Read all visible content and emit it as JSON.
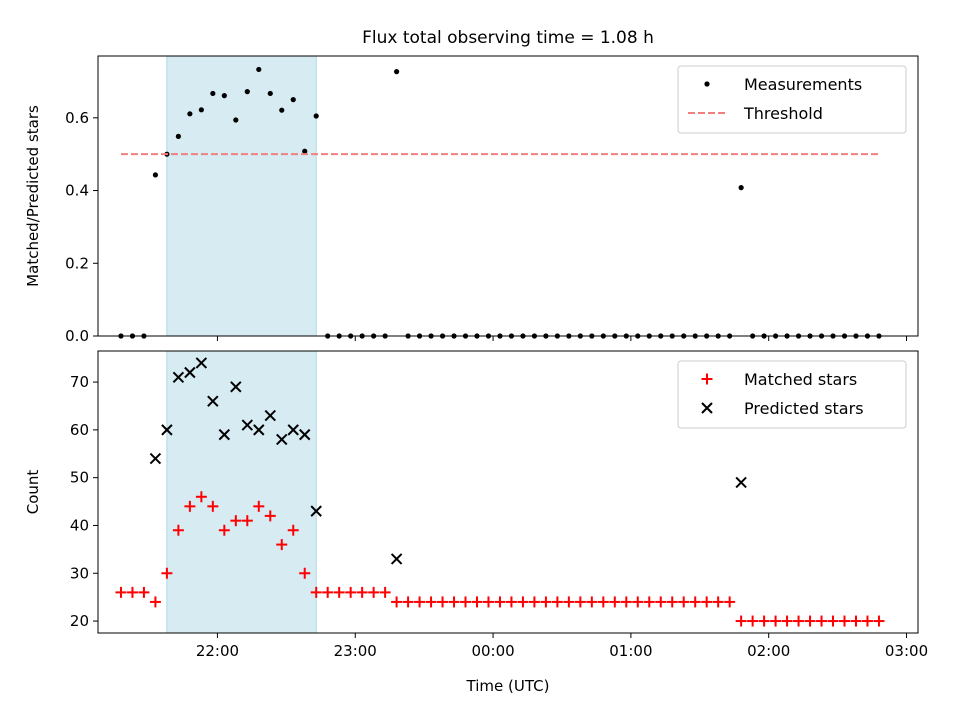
{
  "chart_data": [
    {
      "type": "scatter",
      "title": "Flux total observing time = 1.08 h",
      "xlabel": "",
      "ylabel": "Matched/Predicted stars",
      "xlim": [
        "21:08",
        "03:05"
      ],
      "ylim": [
        0,
        0.77
      ],
      "yticks": [
        "0.0",
        "0.2",
        "0.4",
        "0.6"
      ],
      "xticks": [
        "22:00",
        "23:00",
        "00:00",
        "01:00",
        "02:00",
        "03:00"
      ],
      "x_tick_labels_visible": false,
      "legend": "top-right",
      "highlight_span": [
        "21:38",
        "22:43"
      ],
      "series": [
        {
          "name": "Measurements",
          "marker": "dot",
          "color": "#000000",
          "points": [
            [
              "21:18",
              0.0
            ],
            [
              "21:23",
              0.0
            ],
            [
              "21:28",
              0.0
            ],
            [
              "21:33",
              0.443
            ],
            [
              "21:38",
              0.5
            ],
            [
              "21:43",
              0.549
            ],
            [
              "21:48",
              0.611
            ],
            [
              "21:53",
              0.622
            ],
            [
              "21:58",
              0.667
            ],
            [
              "22:03",
              0.661
            ],
            [
              "22:08",
              0.594
            ],
            [
              "22:13",
              0.672
            ],
            [
              "22:18",
              0.733
            ],
            [
              "22:23",
              0.667
            ],
            [
              "22:28",
              0.621
            ],
            [
              "22:33",
              0.65
            ],
            [
              "22:38",
              0.508
            ],
            [
              "22:43",
              0.605
            ],
            [
              "22:48",
              0.0
            ],
            [
              "22:53",
              0.0
            ],
            [
              "22:58",
              0.0
            ],
            [
              "23:03",
              0.0
            ],
            [
              "23:08",
              0.0
            ],
            [
              "23:13",
              0.0
            ],
            [
              "23:18",
              0.727
            ],
            [
              "23:23",
              0.0
            ],
            [
              "23:28",
              0.0
            ],
            [
              "23:33",
              0.0
            ],
            [
              "23:38",
              0.0
            ],
            [
              "23:43",
              0.0
            ],
            [
              "23:48",
              0.0
            ],
            [
              "23:53",
              0.0
            ],
            [
              "23:58",
              0.0
            ],
            [
              "00:03",
              0.0
            ],
            [
              "00:08",
              0.0
            ],
            [
              "00:13",
              0.0
            ],
            [
              "00:18",
              0.0
            ],
            [
              "00:23",
              0.0
            ],
            [
              "00:28",
              0.0
            ],
            [
              "00:33",
              0.0
            ],
            [
              "00:38",
              0.0
            ],
            [
              "00:43",
              0.0
            ],
            [
              "00:48",
              0.0
            ],
            [
              "00:53",
              0.0
            ],
            [
              "00:58",
              0.0
            ],
            [
              "01:03",
              0.0
            ],
            [
              "01:08",
              0.0
            ],
            [
              "01:13",
              0.0
            ],
            [
              "01:18",
              0.0
            ],
            [
              "01:23",
              0.0
            ],
            [
              "01:28",
              0.0
            ],
            [
              "01:33",
              0.0
            ],
            [
              "01:38",
              0.0
            ],
            [
              "01:43",
              0.0
            ],
            [
              "01:48",
              0.408
            ],
            [
              "01:53",
              0.0
            ],
            [
              "01:58",
              0.0
            ],
            [
              "02:03",
              0.0
            ],
            [
              "02:08",
              0.0
            ],
            [
              "02:13",
              0.0
            ],
            [
              "02:18",
              0.0
            ],
            [
              "02:23",
              0.0
            ],
            [
              "02:28",
              0.0
            ],
            [
              "02:33",
              0.0
            ],
            [
              "02:38",
              0.0
            ],
            [
              "02:43",
              0.0
            ],
            [
              "02:48",
              0.0
            ]
          ]
        },
        {
          "name": "Threshold",
          "marker": "dashed-line",
          "color": "#f08080",
          "points": [
            [
              "21:18",
              0.5
            ],
            [
              "02:48",
              0.5
            ]
          ]
        }
      ]
    },
    {
      "type": "scatter",
      "title": "",
      "xlabel": "Time (UTC)",
      "ylabel": "Count",
      "xlim": [
        "21:08",
        "03:05"
      ],
      "ylim": [
        17.5,
        76.5
      ],
      "yticks": [
        "20",
        "30",
        "40",
        "50",
        "60",
        "70"
      ],
      "xticks": [
        "22:00",
        "23:00",
        "00:00",
        "01:00",
        "02:00",
        "03:00"
      ],
      "x_tick_labels_visible": true,
      "legend": "top-right",
      "highlight_span": [
        "21:38",
        "22:43"
      ],
      "series": [
        {
          "name": "Matched stars",
          "marker": "plus",
          "color": "#ff0000",
          "points": [
            [
              "21:18",
              26
            ],
            [
              "21:23",
              26
            ],
            [
              "21:28",
              26
            ],
            [
              "21:33",
              24
            ],
            [
              "21:38",
              30
            ],
            [
              "21:43",
              39
            ],
            [
              "21:48",
              44
            ],
            [
              "21:53",
              46
            ],
            [
              "21:58",
              44
            ],
            [
              "22:03",
              39
            ],
            [
              "22:08",
              41
            ],
            [
              "22:13",
              41
            ],
            [
              "22:18",
              44
            ],
            [
              "22:23",
              42
            ],
            [
              "22:28",
              36
            ],
            [
              "22:33",
              39
            ],
            [
              "22:38",
              30
            ],
            [
              "22:43",
              26
            ],
            [
              "22:48",
              26
            ],
            [
              "22:53",
              26
            ],
            [
              "22:58",
              26
            ],
            [
              "23:03",
              26
            ],
            [
              "23:08",
              26
            ],
            [
              "23:13",
              26
            ],
            [
              "23:18",
              24
            ],
            [
              "23:23",
              24
            ],
            [
              "23:28",
              24
            ],
            [
              "23:33",
              24
            ],
            [
              "23:38",
              24
            ],
            [
              "23:43",
              24
            ],
            [
              "23:48",
              24
            ],
            [
              "23:53",
              24
            ],
            [
              "23:58",
              24
            ],
            [
              "00:03",
              24
            ],
            [
              "00:08",
              24
            ],
            [
              "00:13",
              24
            ],
            [
              "00:18",
              24
            ],
            [
              "00:23",
              24
            ],
            [
              "00:28",
              24
            ],
            [
              "00:33",
              24
            ],
            [
              "00:38",
              24
            ],
            [
              "00:43",
              24
            ],
            [
              "00:48",
              24
            ],
            [
              "00:53",
              24
            ],
            [
              "00:58",
              24
            ],
            [
              "01:03",
              24
            ],
            [
              "01:08",
              24
            ],
            [
              "01:13",
              24
            ],
            [
              "01:18",
              24
            ],
            [
              "01:23",
              24
            ],
            [
              "01:28",
              24
            ],
            [
              "01:33",
              24
            ],
            [
              "01:38",
              24
            ],
            [
              "01:43",
              24
            ],
            [
              "01:48",
              20
            ],
            [
              "01:53",
              20
            ],
            [
              "01:58",
              20
            ],
            [
              "02:03",
              20
            ],
            [
              "02:08",
              20
            ],
            [
              "02:13",
              20
            ],
            [
              "02:18",
              20
            ],
            [
              "02:23",
              20
            ],
            [
              "02:28",
              20
            ],
            [
              "02:33",
              20
            ],
            [
              "02:38",
              20
            ],
            [
              "02:43",
              20
            ],
            [
              "02:48",
              20
            ]
          ]
        },
        {
          "name": "Predicted stars",
          "marker": "x",
          "color": "#000000",
          "points": [
            [
              "21:33",
              54
            ],
            [
              "21:38",
              60
            ],
            [
              "21:43",
              71
            ],
            [
              "21:48",
              72
            ],
            [
              "21:53",
              74
            ],
            [
              "21:58",
              66
            ],
            [
              "22:03",
              59
            ],
            [
              "22:08",
              69
            ],
            [
              "22:13",
              61
            ],
            [
              "22:18",
              60
            ],
            [
              "22:23",
              63
            ],
            [
              "22:28",
              58
            ],
            [
              "22:33",
              60
            ],
            [
              "22:38",
              59
            ],
            [
              "22:43",
              43
            ],
            [
              "23:18",
              33
            ],
            [
              "01:48",
              49
            ]
          ]
        }
      ]
    }
  ]
}
